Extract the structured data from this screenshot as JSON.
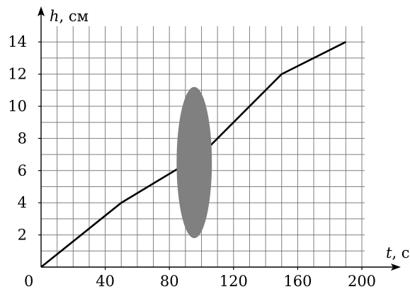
{
  "chart_data": {
    "type": "line",
    "xlabel": {
      "var": "t",
      "unit": ", с"
    },
    "ylabel": {
      "var": "h",
      "unit": ", см"
    },
    "origin_label": "0",
    "xlim": [
      0,
      200
    ],
    "ylim": [
      0,
      14
    ],
    "x_grid_step": 10,
    "y_grid_step": 1,
    "x_ticks": [
      40,
      80,
      120,
      160,
      200
    ],
    "y_ticks": [
      2,
      4,
      6,
      8,
      10,
      12,
      14
    ],
    "grid": true,
    "series": [
      {
        "x": [
          0,
          50,
          100,
          150,
          190
        ],
        "y": [
          0,
          4,
          7,
          12,
          14
        ]
      }
    ],
    "occluder": {
      "shape": "ellipse",
      "color": "#808080",
      "center": [
        95.5,
        6.5
      ],
      "rx": 11,
      "ry": 4.7
    },
    "colors": {
      "line": "#000000",
      "grid": "#7f7f7f",
      "occluder": "#808080"
    }
  }
}
